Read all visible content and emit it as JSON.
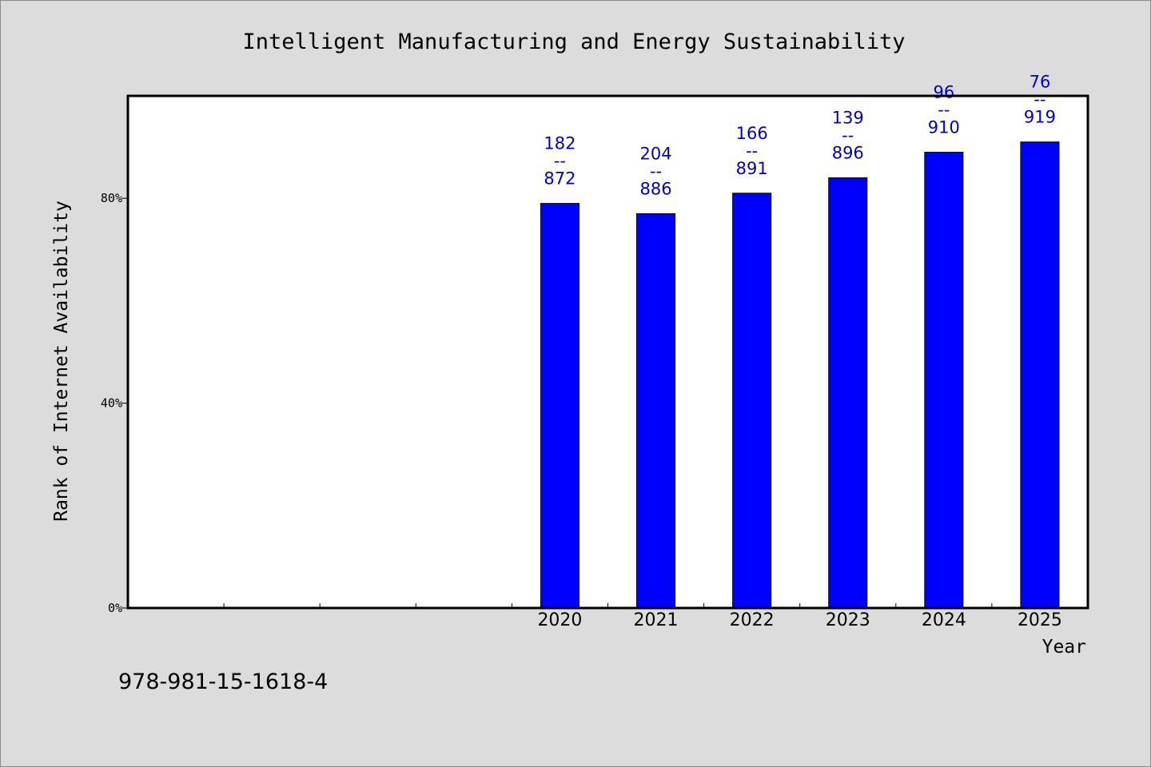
{
  "chart_data": {
    "type": "bar",
    "title": "Intelligent Manufacturing and Energy Sustainability",
    "xlabel": "Year",
    "ylabel": "Rank of Internet Availability",
    "categories": [
      "",
      "",
      "",
      "",
      "2020",
      "2021",
      "2022",
      "2023",
      "2024",
      "2025"
    ],
    "values": [
      null,
      null,
      null,
      null,
      79,
      77,
      81,
      84,
      89,
      91
    ],
    "label_tops": [
      "",
      "",
      "",
      "",
      "182",
      "204",
      "166",
      "139",
      "96",
      "76"
    ],
    "label_bottoms": [
      "",
      "",
      "",
      "",
      "872",
      "886",
      "891",
      "896",
      "910",
      "919"
    ],
    "separator": "--",
    "ylim": [
      0,
      100
    ],
    "yticks": [
      0,
      40,
      80
    ],
    "ytick_labels": [
      "0%",
      "40%",
      "80%"
    ],
    "bar_color": "#0000ff",
    "label_color": "#0000cc",
    "background_color": "#dcdcdc",
    "grid": false,
    "legend": "none"
  },
  "footer": {
    "isbn": "978-981-15-1618-4"
  }
}
